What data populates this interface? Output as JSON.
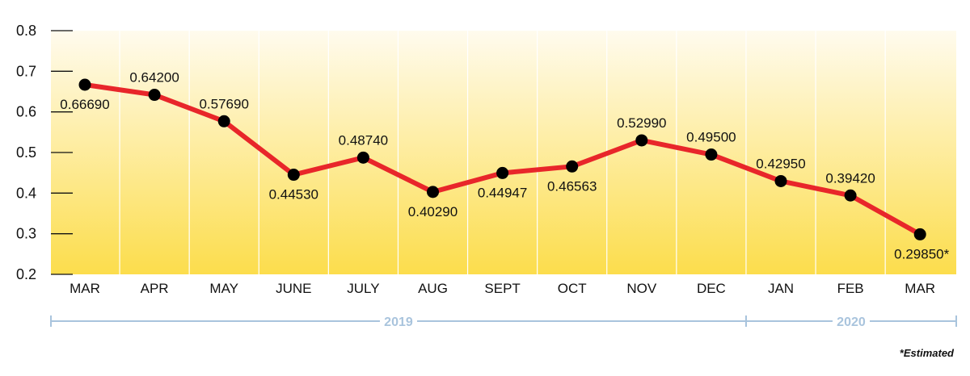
{
  "chart_data": {
    "type": "line",
    "categories": [
      "MAR",
      "APR",
      "MAY",
      "JUNE",
      "JULY",
      "AUG",
      "SEPT",
      "OCT",
      "NOV",
      "DEC",
      "JAN",
      "FEB",
      "MAR"
    ],
    "values": [
      0.6669,
      0.642,
      0.5769,
      0.4453,
      0.4874,
      0.4029,
      0.44947,
      0.46563,
      0.5299,
      0.495,
      0.4295,
      0.3942,
      0.2985
    ],
    "data_labels": [
      "0.66690",
      "0.64200",
      "0.57690",
      "0.44530",
      "0.48740",
      "0.40290",
      "0.44947",
      "0.46563",
      "0.52990",
      "0.49500",
      "0.42950",
      "0.39420",
      "0.29850*"
    ],
    "y_ticks": [
      "0.2",
      "0.3",
      "0.4",
      "0.5",
      "0.6",
      "0.7",
      "0.8"
    ],
    "ylim": [
      0.2,
      0.8
    ],
    "years": [
      {
        "label": "2019",
        "first_index": 0,
        "last_index": 9
      },
      {
        "label": "2020",
        "first_index": 10,
        "last_index": 12
      }
    ],
    "footnote": "*Estimated",
    "colors": {
      "line": "#e8262a",
      "point": "#000000",
      "year_bracket": "#a9c4dd",
      "background_top": "#fffbee",
      "background_bottom": "#fcdd4c"
    }
  }
}
